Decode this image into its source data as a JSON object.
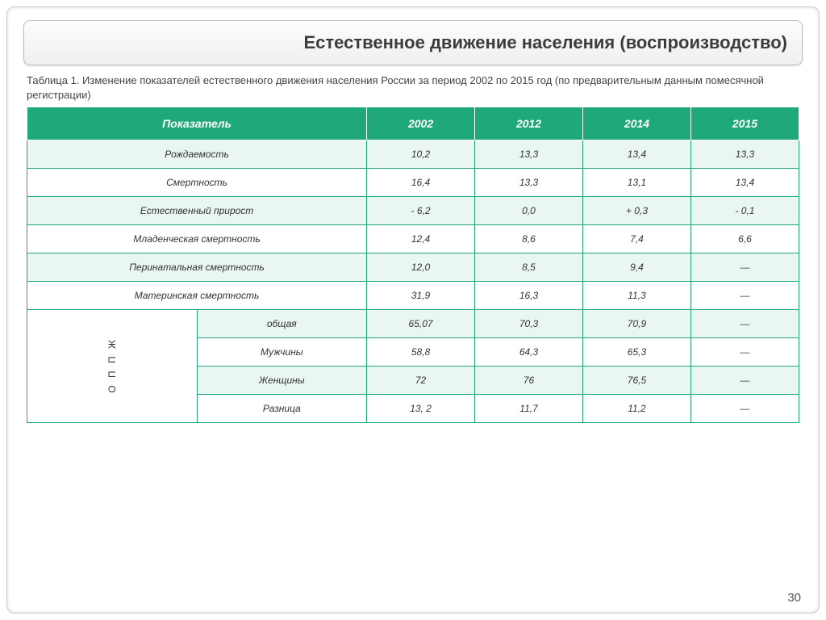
{
  "title": "Естественное движение населения (воспроизводство)",
  "caption": "Таблица 1. Изменение показателей естественного движения населения России за период 2002 по 2015 год (по предварительным данным помесячной регистрации)",
  "pageNumber": "30",
  "table": {
    "type": "table",
    "header_bg": "#1fa97a",
    "header_fg": "#ffffff",
    "border_color": "#1fa97a",
    "alt_row_bg": "#eaf6f1",
    "plain_row_bg": "#ffffff",
    "columns": {
      "indicator": "Показатель",
      "y2002": "2002",
      "y2012": "2012",
      "y2014": "2014",
      "y2015": "2015"
    },
    "rows": [
      {
        "label": "Рождаемость",
        "v": [
          "10,2",
          "13,3",
          "13,4",
          "13,3"
        ],
        "alt": true,
        "h": "small"
      },
      {
        "label": "Смертность",
        "v": [
          "16,4",
          "13,3",
          "13,1",
          "13,4"
        ],
        "alt": false,
        "h": "small"
      },
      {
        "label": "Естественный прирост",
        "v": [
          "- 6,2",
          "0,0",
          "+ 0,3",
          "- 0,1"
        ],
        "alt": true,
        "h": "small"
      },
      {
        "label": "Младенческая смертность",
        "v": [
          "12,4",
          "8,6",
          "7,4",
          "6,6"
        ],
        "alt": false,
        "h": "med"
      },
      {
        "label": "Перинатальная смертность",
        "v": [
          "12,0",
          "8,5",
          "9,4",
          "―"
        ],
        "alt": true,
        "h": "large"
      },
      {
        "label": "Материнская смертность",
        "v": [
          "31,9",
          "16,3",
          "11,3",
          "―"
        ],
        "alt": false,
        "h": "large"
      }
    ],
    "group": {
      "label": "О П П Ж",
      "subrows": [
        {
          "label": "общая",
          "v": [
            "65,07",
            "70,3",
            "70,9",
            "―"
          ],
          "alt": true
        },
        {
          "label": "Мужчины",
          "v": [
            "58,8",
            "64,3",
            "65,3",
            "―"
          ],
          "alt": false
        },
        {
          "label": "Женщины",
          "v": [
            "72",
            "76",
            "76,5",
            "―"
          ],
          "alt": true
        },
        {
          "label": "Разница",
          "v": [
            "13, 2",
            "11,7",
            "11,2",
            "―"
          ],
          "alt": false
        }
      ]
    }
  }
}
